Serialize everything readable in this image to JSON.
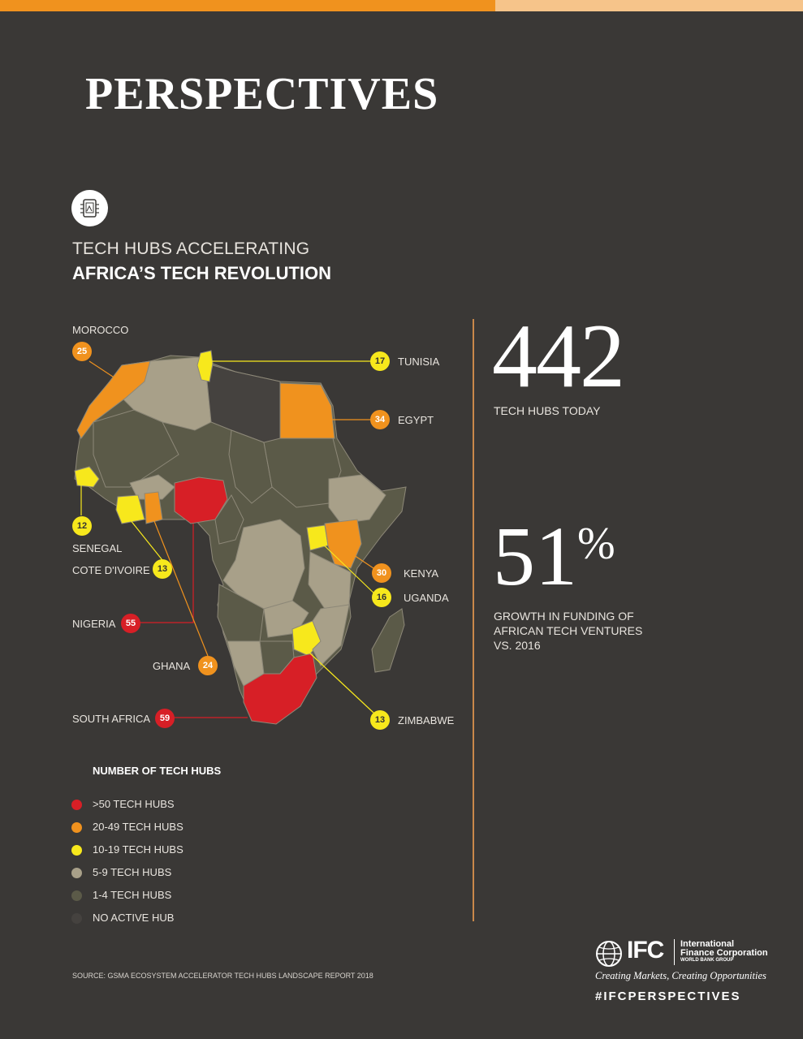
{
  "header": {
    "title": "PERSPECTIVES"
  },
  "colors": {
    "background": "#3a3836",
    "over50": "#d71f26",
    "range20to49": "#f0921e",
    "range10to19": "#f7e81c",
    "range5to9": "#a8a089",
    "range1to4": "#5b5a48",
    "none": "#45423f",
    "accent_bar": "#f0921e",
    "accent_bar_light": "#f6c48a"
  },
  "section": {
    "icon": "circuit-chip-icon",
    "heading_line1": "TECH HUBS ACCELERATING",
    "heading_line2": "AFRICA’S  TECH REVOLUTION"
  },
  "map": {
    "region": "Africa",
    "countries": [
      {
        "name": "MOROCCO",
        "hubs": "25",
        "category": "20-49"
      },
      {
        "name": "TUNISIA",
        "hubs": "17",
        "category": "10-19"
      },
      {
        "name": "EGYPT",
        "hubs": "34",
        "category": "20-49"
      },
      {
        "name": "SENEGAL",
        "hubs": "12",
        "category": "10-19"
      },
      {
        "name": "COTE D'IVOIRE",
        "hubs": "13",
        "category": "10-19"
      },
      {
        "name": "KENYA",
        "hubs": "30",
        "category": "20-49"
      },
      {
        "name": "UGANDA",
        "hubs": "16",
        "category": "10-19"
      },
      {
        "name": "NIGERIA",
        "hubs": "55",
        "category": ">50"
      },
      {
        "name": "GHANA",
        "hubs": "24",
        "category": "20-49"
      },
      {
        "name": "SOUTH AFRICA",
        "hubs": "59",
        "category": ">50"
      },
      {
        "name": "ZIMBABWE",
        "hubs": "13",
        "category": "10-19"
      }
    ]
  },
  "stats": {
    "hubs_value": "442",
    "hubs_label": "TECH HUBS TODAY",
    "growth_value": "51",
    "growth_unit": "%",
    "growth_label_1": "GROWTH IN FUNDING OF",
    "growth_label_2": "AFRICAN TECH VENTURES",
    "growth_label_3": "VS. 2016"
  },
  "legend": {
    "title": "NUMBER OF TECH HUBS",
    "items": [
      {
        "label": ">50 TECH HUBS",
        "color": "#d71f26"
      },
      {
        "label": "20-49 TECH HUBS",
        "color": "#f0921e"
      },
      {
        "label": "10-19 TECH HUBS",
        "color": "#f7e81c"
      },
      {
        "label": "5-9 TECH HUBS",
        "color": "#a8a089"
      },
      {
        "label": "1-4 TECH HUBS",
        "color": "#5b5a48"
      },
      {
        "label": "NO ACTIVE HUB",
        "color": "#45423f"
      }
    ]
  },
  "source": "SOURCE: GSMA ECOSYSTEM ACCELERATOR TECH HUBS LANDSCAPE REPORT 2018",
  "footer": {
    "logo_icon": "globe-icon",
    "logo_mark": "IFC",
    "org_line1": "International",
    "org_line2": "Finance Corporation",
    "org_group": "WORLD BANK GROUP",
    "tagline": "Creating Markets, Creating Opportunities",
    "hashtag": "#IFCPERSPECTIVES"
  }
}
